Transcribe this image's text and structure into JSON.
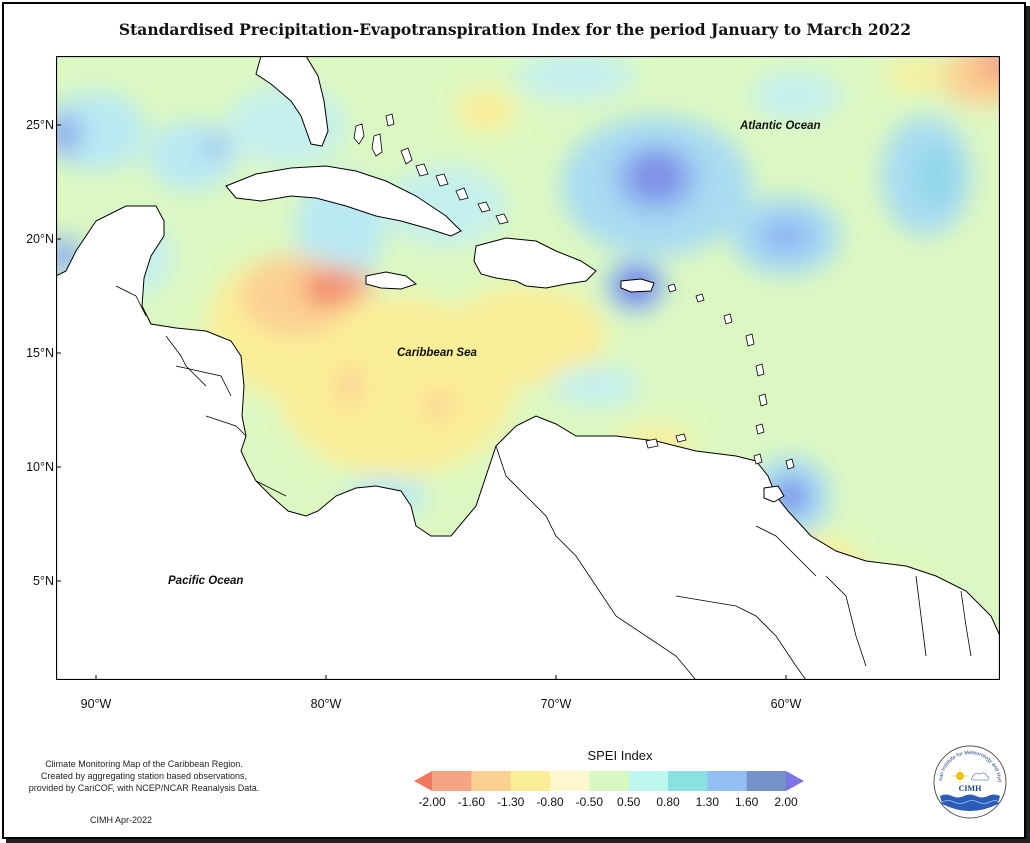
{
  "title": "Standardised Precipitation-Evapotranspiration Index for the period January to March 2022",
  "map": {
    "lat_range": [
      0.8,
      28.2
    ],
    "lon_range": [
      -91.8,
      -50.8
    ],
    "lat_ticks": [
      {
        "value": 25,
        "label": "25°N"
      },
      {
        "value": 20,
        "label": "20°N"
      },
      {
        "value": 15,
        "label": "15°N"
      },
      {
        "value": 10,
        "label": "10°N"
      },
      {
        "value": 5,
        "label": "5°N"
      }
    ],
    "lon_ticks": [
      {
        "value": -90,
        "label": "90°W"
      },
      {
        "value": -80,
        "label": "80°W"
      },
      {
        "value": -70,
        "label": "70°W"
      },
      {
        "value": -60,
        "label": "60°W"
      }
    ],
    "labels": {
      "atlantic": "Atlantic Ocean",
      "caribbean": "Caribbean Sea",
      "pacific": "Pacific Ocean"
    }
  },
  "legend": {
    "title": "SPEI Index",
    "ticks": [
      "-2.00",
      "-1.60",
      "-1.30",
      "-0.80",
      "-0.50",
      "0.50",
      "0.80",
      "1.30",
      "1.60",
      "2.00"
    ],
    "colors": [
      "#f0785e",
      "#f5a486",
      "#fccf93",
      "#fbee99",
      "#fdf7cf",
      "#d9f7c0",
      "#bdf7ee",
      "#8ae2e0",
      "#93bff5",
      "#7393c8",
      "#7b74e6"
    ]
  },
  "caption": {
    "line1": "Climate Monitoring Map of the Caribbean Region.",
    "line2": "Created by aggregating station based observations,",
    "line3": "provided by CariCOF, with NCEP/NCAR Reanalysis Data."
  },
  "credit": "CIMH Apr-2022",
  "logo": {
    "arc_text": "Caribbean Institute for Meteorology and Hydrology",
    "name": "CIMH"
  }
}
